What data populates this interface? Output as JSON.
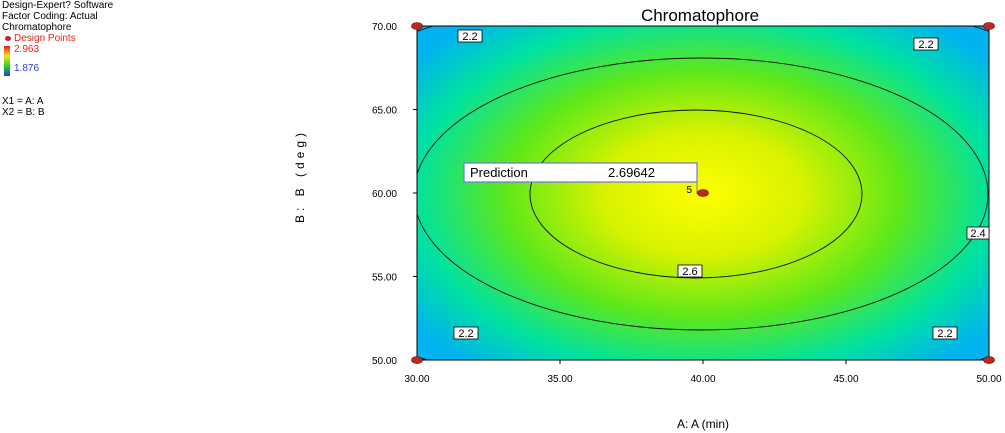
{
  "legend": {
    "software": "Design-Expert? Software",
    "factor_coding": "Factor Coding: Actual",
    "response": "Chromatophore",
    "design_points": "Design Points",
    "max_value": "2.963",
    "min_value": "1.876",
    "x1": "X1 = A: A",
    "x2": "X2 = B: B",
    "colors": {
      "max": "#e21a1a",
      "min": "#2a3fd9",
      "design_point": "#c0281e"
    }
  },
  "chart_data": {
    "type": "contour",
    "title": "Chromatophore",
    "xlabel": "A: A (min)",
    "ylabel": "B: B (deg)",
    "xlim": [
      30,
      50
    ],
    "ylim": [
      50,
      70
    ],
    "x_ticks": [
      "30.00",
      "35.00",
      "40.00",
      "45.00",
      "50.00"
    ],
    "y_ticks": [
      "50.00",
      "55.00",
      "60.00",
      "65.00",
      "70.00"
    ],
    "contour_levels": [
      {
        "level": 2.2,
        "labels": [
          "2.2",
          "2.2",
          "2.2",
          "2.2"
        ]
      },
      {
        "level": 2.4,
        "labels": [
          "2.4"
        ]
      },
      {
        "level": 2.6,
        "labels": [
          "2.6"
        ]
      }
    ],
    "center": {
      "x": 40,
      "y": 60
    },
    "max_value": 2.963,
    "min_value": 1.876,
    "design_points": [
      {
        "x": 30,
        "y": 50
      },
      {
        "x": 30,
        "y": 70
      },
      {
        "x": 50,
        "y": 50
      },
      {
        "x": 50,
        "y": 70
      },
      {
        "x": 40,
        "y": 60,
        "count": "5"
      }
    ],
    "prediction": {
      "label": "Prediction",
      "value": "2.69642",
      "x": 40,
      "y": 60
    }
  }
}
